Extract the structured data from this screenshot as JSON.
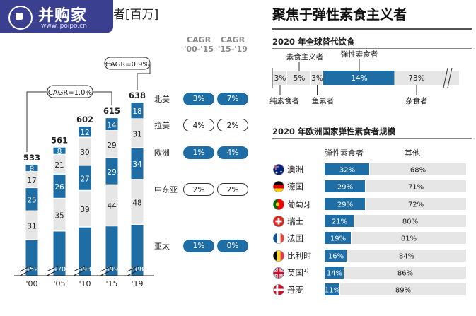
{
  "watermark": {
    "name": "并购家",
    "url": "www.ipoipo.cn"
  },
  "left_title_text": "者[百万]",
  "right_title": "聚焦于弹性素食主义者",
  "cagr_headers": [
    {
      "label": "CAGR",
      "period": "'00-'15"
    },
    {
      "label": "CAGR",
      "period": "'15-'19"
    }
  ],
  "cagr_callouts": [
    "CAGR=1.0%",
    "CAGR=0.9%"
  ],
  "regions": [
    {
      "name": "北美",
      "c1": "3%",
      "c2": "7%",
      "c1_style": "solid",
      "c2_style": "solid"
    },
    {
      "name": "拉美",
      "c1": "4%",
      "c2": "2%",
      "c1_style": "outline",
      "c2_style": "outline"
    },
    {
      "name": "欧洲",
      "c1": "1%",
      "c2": "4%",
      "c1_style": "solid",
      "c2_style": "solid"
    },
    {
      "name": "中东亚",
      "c1": "2%",
      "c2": "2%",
      "c1_style": "outline",
      "c2_style": "outline"
    },
    {
      "name": "亚太",
      "c1": "1%",
      "c2": "0%",
      "c1_style": "solid",
      "c2_style": "solid"
    }
  ],
  "global_diet": {
    "title": "2020 年全球替代饮食",
    "segments": [
      {
        "label": "纯素食者",
        "value": 3,
        "text": "3%"
      },
      {
        "label": "素食主义者",
        "value": 5,
        "text": "5%"
      },
      {
        "label": "鱼素者",
        "value": 3,
        "text": "3%"
      },
      {
        "label": "弹性素食者",
        "value": 14,
        "text": "14%"
      },
      {
        "label": "杂食者",
        "value": 73,
        "text": "73%"
      }
    ]
  },
  "europe_scale": {
    "title": "2020 年欧洲国家弹性素食者规模",
    "col1": "弹性素食者",
    "col2": "其他",
    "countries": [
      {
        "name": "澳洲",
        "flex": 32,
        "flex_text": "32%",
        "other_text": "68%",
        "flag": "australia-flag-icon"
      },
      {
        "name": "德国",
        "flex": 29,
        "flex_text": "29%",
        "other_text": "71%",
        "flag": "germany-flag-icon"
      },
      {
        "name": "葡萄牙",
        "flex": 29,
        "flex_text": "29%",
        "other_text": "72%",
        "flag": "portugal-flag-icon"
      },
      {
        "name": "瑞士",
        "flex": 21,
        "flex_text": "21%",
        "other_text": "80%",
        "flag": "switzerland-flag-icon"
      },
      {
        "name": "法国",
        "flex": 19,
        "flex_text": "19%",
        "other_text": "81%",
        "flag": "france-flag-icon"
      },
      {
        "name": "比利时",
        "flex": 16,
        "flex_text": "16%",
        "other_text": "84%",
        "flag": "belgium-flag-icon"
      },
      {
        "name": "英国",
        "note": "1)",
        "flex": 14,
        "flex_text": "14%",
        "other_text": "86%",
        "flag": "uk-flag-icon"
      },
      {
        "name": "丹麦",
        "flex": 11,
        "flex_text": "11%",
        "other_text": "89%",
        "flag": "denmark-flag-icon"
      }
    ]
  },
  "colors": {
    "blue": "#1e6ea5",
    "gray": "#e6e6e6",
    "white": "#ffffff",
    "text": "#222222"
  },
  "chart_data": [
    {
      "type": "bar",
      "stacked": true,
      "categories": [
        "'00",
        "'05",
        "'10",
        "'15",
        "'19"
      ],
      "totals": [
        533,
        561,
        602,
        615,
        638
      ],
      "series": [
        {
          "name": "亚太",
          "values": [
            452,
            470,
            493,
            499,
            508
          ]
        },
        {
          "name": "中东亚",
          "values": [
            31,
            35,
            39,
            44,
            48
          ]
        },
        {
          "name": "欧洲",
          "values": [
            25,
            26,
            27,
            29,
            34
          ]
        },
        {
          "name": "拉美",
          "values": [
            17,
            21,
            30,
            29,
            31
          ]
        },
        {
          "name": "北美",
          "values": [
            8,
            8,
            12,
            14,
            18
          ]
        }
      ],
      "axis_break": true
    },
    {
      "type": "bar",
      "stacked": true,
      "orientation": "horizontal",
      "title": "2020 年全球替代饮食",
      "categories": [
        "纯素食者",
        "素食主义者",
        "鱼素者",
        "弹性素食者",
        "杂食者"
      ],
      "values": [
        3,
        5,
        3,
        14,
        73
      ]
    },
    {
      "type": "bar",
      "stacked": true,
      "orientation": "horizontal",
      "title": "2020 年欧洲国家弹性素食者规模",
      "categories": [
        "澳洲",
        "德国",
        "葡萄牙",
        "瑞士",
        "法国",
        "比利时",
        "英国",
        "丹麦"
      ],
      "series": [
        {
          "name": "弹性素食者",
          "values": [
            32,
            29,
            29,
            21,
            19,
            16,
            14,
            11
          ]
        },
        {
          "name": "其他",
          "values": [
            68,
            71,
            72,
            80,
            81,
            84,
            86,
            89
          ]
        }
      ]
    }
  ]
}
